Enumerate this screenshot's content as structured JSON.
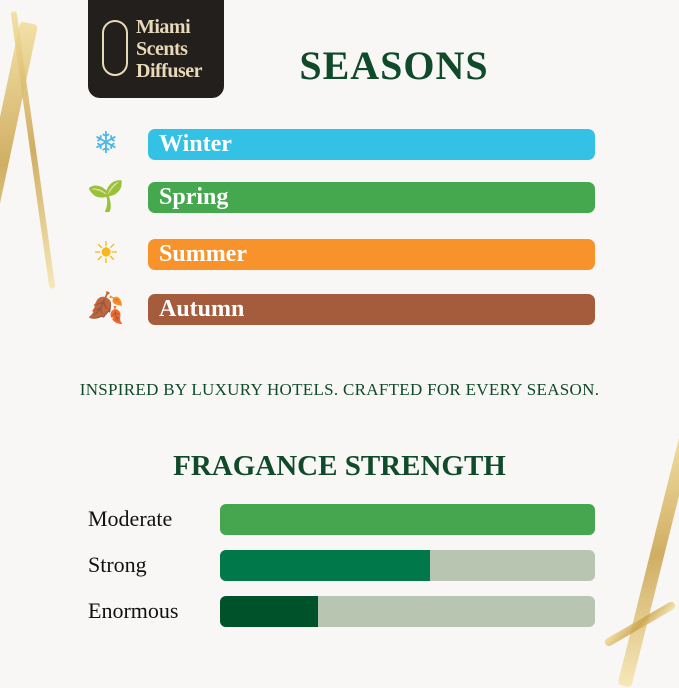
{
  "logo": {
    "line1": "Miami",
    "line2": "Scents",
    "line3": "Diffuser"
  },
  "seasons": {
    "title": "SEASONS",
    "items": [
      {
        "label": "Winter",
        "icon": "snowflake-icon",
        "glyph": "❄",
        "color": "#33c1e6"
      },
      {
        "label": "Spring",
        "icon": "sprout-icon",
        "glyph": "🌱",
        "color": "#45a84e"
      },
      {
        "label": "Summer",
        "icon": "sun-icon",
        "glyph": "☀",
        "color": "#f7932a"
      },
      {
        "label": "Autumn",
        "icon": "autumn-leaves-icon",
        "glyph": "🍂",
        "color": "#a45c3c"
      }
    ]
  },
  "tagline": "INSPIRED BY LUXURY HOTELS. CRAFTED FOR EVERY SEASON.",
  "strength": {
    "title": "FRAGANCE STRENGTH",
    "items": [
      {
        "label": "Moderate",
        "level_percent": 100,
        "color": "#45a64f"
      },
      {
        "label": "Strong",
        "level_percent": 56,
        "color": "#00784a"
      },
      {
        "label": "Enormous",
        "level_percent": 26,
        "color": "#00522a"
      }
    ],
    "track_color": "#b8c5b0"
  }
}
